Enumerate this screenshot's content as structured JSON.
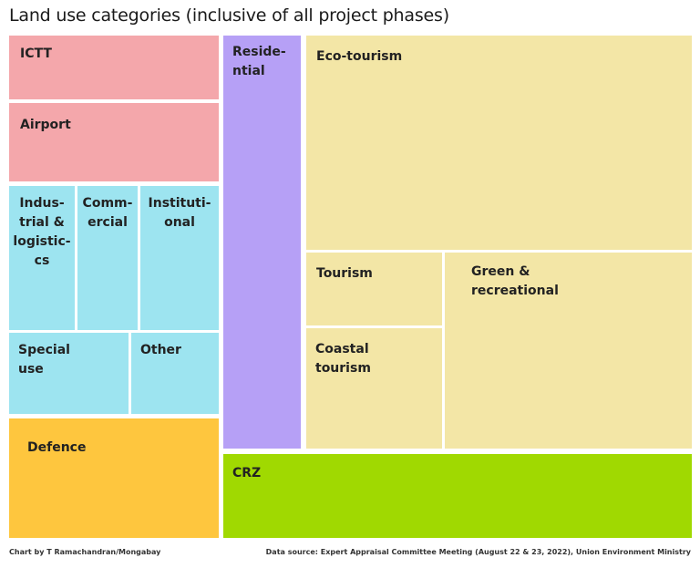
{
  "title": "Land use categories (inclusive of all project phases)",
  "chart_data": {
    "type": "treemap",
    "title": "Land use categories (inclusive of all project phases)",
    "tiles": [
      {
        "id": "ictt",
        "label": "ICTT",
        "color": "#f4a7ab"
      },
      {
        "id": "airport",
        "label": "Airport",
        "color": "#f4a7ab"
      },
      {
        "id": "industrial",
        "label": "Indus-\ntrial &\nlogistic-\ncs",
        "color": "#9de4f0"
      },
      {
        "id": "commercial",
        "label": "Comm-\nercial",
        "color": "#9de4f0"
      },
      {
        "id": "institutional",
        "label": "Instituti-\nonal",
        "color": "#9de4f0"
      },
      {
        "id": "special",
        "label": "Special\nuse",
        "color": "#9de4f0"
      },
      {
        "id": "other",
        "label": "Other",
        "color": "#9de4f0"
      },
      {
        "id": "defence",
        "label": "Defence",
        "color": "#fec63e"
      },
      {
        "id": "residential",
        "label": "Reside-\nntial",
        "color": "#b6a0f6"
      },
      {
        "id": "ecotourism",
        "label": "Eco-tourism",
        "color": "#f3e6a6"
      },
      {
        "id": "tourism",
        "label": "Tourism",
        "color": "#f3e6a6"
      },
      {
        "id": "coastal",
        "label": "Coastal\ntourism",
        "color": "#f3e6a6"
      },
      {
        "id": "green",
        "label": "Green &\nrecreational",
        "color": "#f3e6a6"
      },
      {
        "id": "crz",
        "label": "CRZ",
        "color": "#a0d901"
      }
    ]
  },
  "footer": {
    "credit": "Chart by T Ramachandran/Mongabay",
    "source": "Data source: Expert Appraisal Committee Meeting (August 22 & 23, 2022), Union Environment Ministry"
  }
}
